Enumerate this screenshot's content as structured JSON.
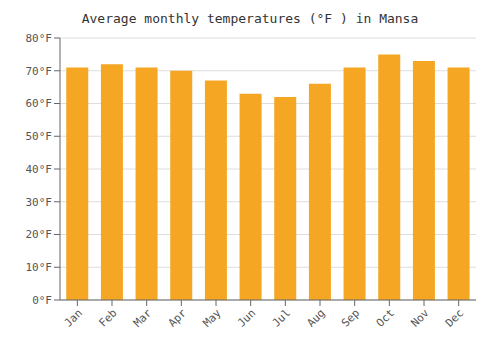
{
  "chart_data": {
    "type": "bar",
    "title": "Average monthly temperatures (°F ) in Mansa",
    "categories": [
      "Jan",
      "Feb",
      "Mar",
      "Apr",
      "May",
      "Jun",
      "Jul",
      "Aug",
      "Sep",
      "Oct",
      "Nov",
      "Dec"
    ],
    "values": [
      71,
      72,
      71,
      70,
      67,
      63,
      62,
      66,
      71,
      75,
      73,
      71
    ],
    "color": "#F5A623",
    "ylim": [
      0,
      80
    ],
    "yticks": [
      {
        "value": 0,
        "label": "0°F"
      },
      {
        "value": 10,
        "label": "10°F"
      },
      {
        "value": 20,
        "label": "20°F"
      },
      {
        "value": 30,
        "label": "30°F"
      },
      {
        "value": 40,
        "label": "40°F"
      },
      {
        "value": 50,
        "label": "50°F"
      },
      {
        "value": 60,
        "label": "60°F"
      },
      {
        "value": 70,
        "label": "70°F"
      },
      {
        "value": 80,
        "label": "80°F"
      }
    ],
    "grid": true
  }
}
